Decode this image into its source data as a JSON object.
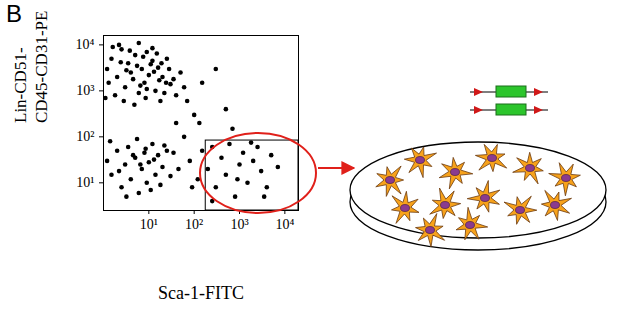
{
  "panel_label": "B",
  "chart_data": {
    "type": "scatter",
    "xlabel": "Sca-1-FITC",
    "ylabel": "Lin-CD51-\nCD45-CD31-PE",
    "log": true,
    "color": "#000000",
    "xlim": [
      1,
      20000
    ],
    "ylim": [
      2.5,
      16000
    ],
    "xticks": [
      {
        "value": 10,
        "label": "10¹"
      },
      {
        "value": 100,
        "label": "10²"
      },
      {
        "value": 1000,
        "label": "10³"
      },
      {
        "value": 10000,
        "label": "10⁴"
      }
    ],
    "yticks": [
      {
        "value": 10,
        "label": "10¹"
      },
      {
        "value": 100,
        "label": "10²"
      },
      {
        "value": 1000,
        "label": "10³"
      },
      {
        "value": 10000,
        "label": "10⁴"
      }
    ],
    "gate": {
      "x": [
        180,
        20000
      ],
      "y": [
        2.5,
        83
      ]
    },
    "x": [
      1.2,
      1.5,
      2,
      2.5,
      3,
      3.5,
      4,
      5,
      6,
      7,
      8,
      9,
      10,
      12,
      14,
      16,
      18,
      20,
      25,
      30,
      1.3,
      1.8,
      2.2,
      2.8,
      3.2,
      4.5,
      5.5,
      6.5,
      7.5,
      8.5,
      11,
      13,
      15,
      17,
      22,
      28,
      35,
      40,
      50,
      60,
      1.1,
      1.6,
      2.4,
      3.8,
      4.8,
      6,
      9,
      12,
      19,
      24,
      1.2,
      1.5,
      2,
      2.5,
      3,
      3.5,
      4,
      5,
      6,
      7,
      8,
      9,
      10,
      12,
      14,
      16,
      18,
      20,
      25,
      30,
      1.4,
      2.2,
      3.2,
      4.5,
      5.5,
      6.5,
      8.5,
      11,
      13,
      22,
      60,
      80,
      100,
      120,
      150,
      200,
      250,
      300,
      400,
      500,
      600,
      800,
      1000,
      1200,
      1500,
      2000,
      2500,
      3000,
      4000,
      5000,
      7000,
      250,
      900,
      1800,
      3500,
      40,
      70,
      150,
      300,
      500,
      45,
      90,
      35,
      130,
      700
    ],
    "values": [
      3000,
      5000,
      2000,
      8000,
      1200,
      4000,
      2500,
      6000,
      900,
      3000,
      1500,
      7000,
      2200,
      4500,
      1000,
      3200,
      600,
      2000,
      5000,
      1400,
      1500,
      800,
      10000,
      600,
      2800,
      1800,
      3500,
      1300,
      5500,
      700,
      3800,
      2600,
      6500,
      1700,
      900,
      3000,
      1800,
      800,
      2500,
      1200,
      700,
      9000,
      4200,
      7500,
      500,
      11000,
      1100,
      8500,
      4000,
      1500,
      30,
      15,
      50,
      8,
      25,
      60,
      12,
      35,
      6,
      20,
      45,
      10,
      28,
      70,
      15,
      40,
      9,
      22,
      50,
      14,
      80,
      18,
      5,
      40,
      90,
      25,
      55,
      7,
      32,
      65,
      100,
      30,
      300,
      12,
      50,
      20,
      60,
      8,
      35,
      15,
      70,
      5,
      25,
      45,
      10,
      30,
      60,
      18,
      8,
      40,
      22,
      4,
      12,
      75,
      5,
      200,
      600,
      1500,
      3000,
      400,
      20,
      8,
      45,
      200,
      150
    ]
  }
}
